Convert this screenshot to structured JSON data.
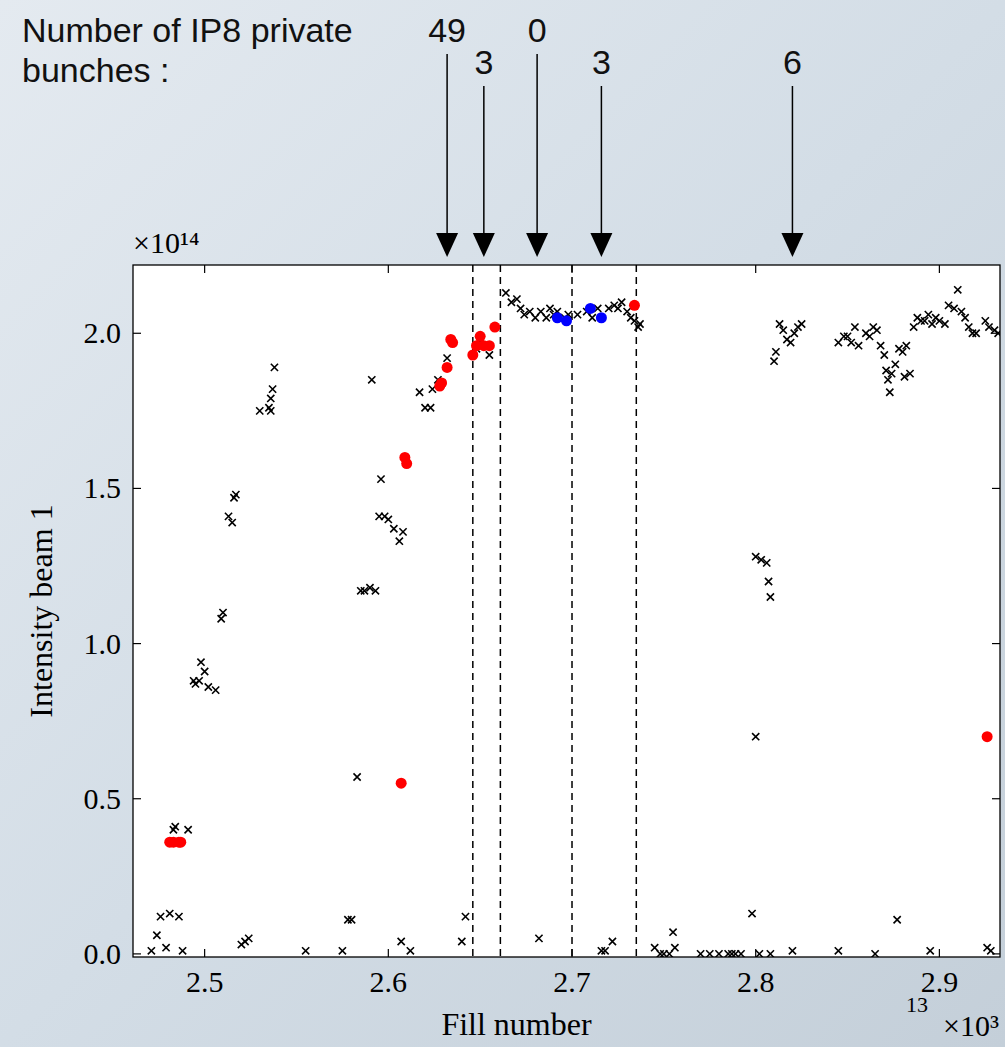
{
  "chart_data": {
    "type": "scatter",
    "xlabel": "Fill number",
    "ylabel": "Intensity beam 1",
    "x_multiplier": "×10³",
    "y_multiplier": "×10¹⁴",
    "extra_text": "13",
    "xlim": [
      2.461,
      2.933
    ],
    "ylim": [
      -0.01,
      2.22
    ],
    "xticks": [
      2.5,
      2.6,
      2.7,
      2.8,
      2.9
    ],
    "yticks": [
      {
        "value": 0,
        "label": "0.0"
      },
      0.5,
      {
        "value": 1,
        "label": "1.0"
      },
      1.5,
      {
        "value": 2,
        "label": "2.0"
      }
    ],
    "grid": false,
    "vlines": [
      2.646,
      2.661,
      2.7,
      2.735
    ],
    "arrows_title": "Number of IP8 private bunches :",
    "arrows": [
      {
        "x": 2.632,
        "value": 49
      },
      {
        "x": 2.652,
        "value": 3
      },
      {
        "x": 2.681,
        "value": 0
      },
      {
        "x": 2.716,
        "value": 3
      },
      {
        "x": 2.82,
        "value": 6
      }
    ],
    "series": [
      {
        "color": "#000000",
        "marker": "x",
        "x": [
          2.471,
          2.474,
          2.476,
          2.481,
          2.483,
          2.484,
          2.486,
          2.488,
          2.491,
          2.479,
          2.494,
          2.495,
          2.497,
          2.498,
          2.5,
          2.502,
          2.506,
          2.509,
          2.51,
          2.513,
          2.515,
          2.516,
          2.517,
          2.52,
          2.522,
          2.524,
          2.53,
          2.535,
          2.536,
          2.537,
          2.538,
          2.536,
          2.555,
          2.575,
          2.578,
          2.58,
          2.583,
          2.585,
          2.587,
          2.59,
          2.591,
          2.593,
          2.595,
          2.596,
          2.598,
          2.6,
          2.603,
          2.606,
          2.608,
          2.607,
          2.612,
          2.617,
          2.62,
          2.623,
          2.624,
          2.627,
          2.629,
          2.632,
          2.64,
          2.642,
          2.648,
          2.65,
          2.655,
          2.664,
          2.667,
          2.67,
          2.672,
          2.674,
          2.677,
          2.68,
          2.683,
          2.686,
          2.688,
          2.69,
          2.692,
          2.696,
          2.682,
          2.698,
          2.703,
          2.708,
          2.711,
          2.714,
          2.716,
          2.718,
          2.72,
          2.723,
          2.725,
          2.727,
          2.73,
          2.732,
          2.722,
          2.734,
          2.736,
          2.737,
          2.745,
          2.748,
          2.75,
          2.753,
          2.755,
          2.756,
          2.77,
          2.775,
          2.78,
          2.785,
          2.787,
          2.789,
          2.792,
          2.798,
          2.8,
          2.8,
          2.803,
          2.806,
          2.807,
          2.808,
          2.802,
          2.808,
          2.81,
          2.811,
          2.813,
          2.815,
          2.817,
          2.819,
          2.821,
          2.823,
          2.82,
          2.825,
          2.845,
          2.848,
          2.85,
          2.852,
          2.854,
          2.856,
          2.86,
          2.862,
          2.864,
          2.866,
          2.868,
          2.87,
          2.871,
          2.872,
          2.873,
          2.874,
          2.876,
          2.878,
          2.88,
          2.881,
          2.882,
          2.884,
          2.886,
          2.888,
          2.89,
          2.892,
          2.894,
          2.896,
          2.898,
          2.9,
          2.903,
          2.905,
          2.908,
          2.91,
          2.912,
          2.914,
          2.916,
          2.918,
          2.92,
          2.925,
          2.927,
          2.93,
          2.932,
          2.845,
          2.877,
          2.895,
          2.926,
          2.928,
          2.865
        ],
        "values": [
          0.01,
          0.06,
          0.12,
          0.13,
          0.4,
          0.41,
          0.12,
          0.01,
          0.4,
          0.02,
          0.88,
          0.87,
          0.88,
          0.94,
          0.91,
          0.86,
          0.85,
          1.08,
          1.1,
          1.41,
          1.39,
          1.47,
          1.48,
          0.03,
          0.04,
          0.05,
          1.75,
          1.76,
          1.79,
          1.82,
          1.89,
          1.75,
          0.01,
          0.01,
          0.11,
          0.11,
          0.57,
          1.17,
          1.17,
          1.18,
          1.85,
          1.17,
          1.41,
          1.53,
          1.41,
          1.4,
          1.37,
          1.33,
          1.36,
          0.04,
          0.01,
          1.81,
          1.76,
          1.76,
          1.82,
          1.85,
          1.84,
          1.92,
          0.04,
          0.12,
          1.95,
          1.97,
          1.93,
          2.13,
          2.1,
          2.11,
          2.08,
          2.06,
          2.07,
          2.05,
          2.07,
          2.05,
          2.08,
          2.06,
          2.07,
          2.05,
          0.05,
          2.06,
          2.06,
          2.07,
          2.05,
          2.08,
          0.01,
          0.01,
          2.08,
          2.09,
          2.08,
          2.1,
          2.07,
          2.05,
          0.04,
          2.04,
          2.02,
          2.03,
          0.02,
          0.0,
          0.0,
          0.0,
          0.07,
          0.02,
          0.0,
          0.0,
          0.0,
          0.0,
          0.0,
          0.0,
          0.0,
          0.13,
          0.7,
          1.28,
          1.27,
          1.26,
          1.2,
          1.15,
          0.0,
          0.0,
          1.91,
          1.94,
          2.03,
          2.01,
          1.98,
          1.97,
          2.0,
          2.02,
          0.01,
          2.03,
          1.97,
          1.99,
          1.99,
          1.97,
          2.02,
          1.96,
          2.0,
          1.99,
          2.02,
          2.01,
          1.96,
          1.93,
          1.88,
          1.85,
          1.81,
          1.87,
          1.9,
          1.95,
          1.94,
          1.86,
          1.96,
          1.87,
          2.02,
          2.05,
          2.04,
          2.04,
          2.06,
          2.03,
          2.05,
          2.04,
          2.03,
          2.09,
          2.08,
          2.14,
          2.07,
          2.05,
          2.02,
          2.0,
          2.0,
          2.04,
          2.02,
          2.01,
          2.0,
          0.01,
          0.11,
          0.01,
          0.02,
          0.01,
          0.0
        ]
      },
      {
        "color": "#ff0000",
        "marker": "o",
        "x": [
          2.481,
          2.483,
          2.486,
          2.487,
          2.607,
          2.609,
          2.61,
          2.628,
          2.629,
          2.632,
          2.634,
          2.635,
          2.646,
          2.648,
          2.65,
          2.652,
          2.655,
          2.658,
          2.734,
          2.926
        ],
        "values": [
          0.36,
          0.36,
          0.36,
          0.36,
          0.55,
          1.6,
          1.58,
          1.83,
          1.84,
          1.89,
          1.98,
          1.97,
          1.93,
          1.96,
          1.99,
          1.96,
          1.96,
          2.02,
          2.09,
          0.7
        ]
      },
      {
        "color": "#0000ff",
        "marker": "o",
        "x": [
          2.692,
          2.697,
          2.71,
          2.716
        ],
        "values": [
          2.05,
          2.04,
          2.08,
          2.05
        ]
      }
    ]
  }
}
